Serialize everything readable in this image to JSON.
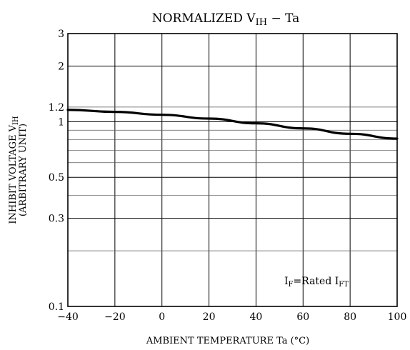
{
  "chart_data": {
    "type": "line",
    "title": "NORMALIZED V",
    "title_sub": "IH",
    "title_tail": " − Ta",
    "xlabel": "AMBIENT TEMPERATURE   Ta   (°C)",
    "ylabel_line1": "INHIBIT VOLTAGE  V",
    "ylabel_line1_sub": "IH",
    "ylabel_line2": "(ARBITRARY UNIT)",
    "x_ticks": [
      -40,
      -20,
      0,
      20,
      40,
      60,
      80,
      100
    ],
    "x_tick_labels": [
      "−40",
      "−20",
      "0",
      "20",
      "40",
      "60",
      "80",
      "100"
    ],
    "y_ticks": [
      0.1,
      0.3,
      0.5,
      1,
      1.2,
      2,
      3
    ],
    "y_tick_labels": [
      "0.1",
      "0.3",
      "0.5",
      "1",
      "1.2",
      "2",
      "3"
    ],
    "y_minor_gridlines": [
      0.2,
      0.4,
      0.6,
      0.7,
      0.8,
      0.9,
      1.2
    ],
    "y_major_gridlines": [
      0.3,
      0.5,
      1,
      2
    ],
    "x_scale": "linear",
    "y_scale": "log",
    "xlim": [
      -40,
      100
    ],
    "ylim": [
      0.1,
      3
    ],
    "grid": true,
    "annotation": {
      "prefix": "I",
      "prefix_sub": "F",
      "middle": "=Rated I",
      "suffix_sub": "FT"
    },
    "series": [
      {
        "x": [
          -40,
          -20,
          0,
          20,
          40,
          60,
          80,
          100
        ],
        "y": [
          1.16,
          1.13,
          1.09,
          1.04,
          0.98,
          0.92,
          0.86,
          0.81
        ]
      }
    ]
  }
}
